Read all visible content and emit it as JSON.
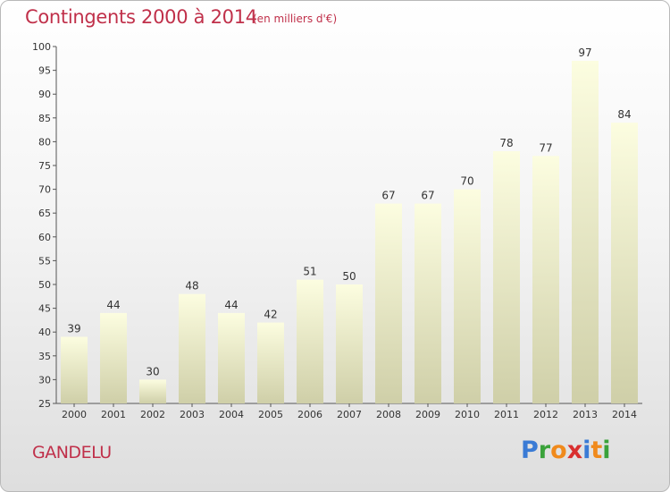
{
  "header": {
    "title": "Contingents 2000 à 2014",
    "subtitle": "(en milliers d'€)"
  },
  "footer": {
    "commune": "GANDELU",
    "logo_letters": [
      "P",
      "r",
      "o",
      "x",
      "i",
      "t",
      "i"
    ]
  },
  "colors": {
    "title": "#c0304a",
    "bar_top": "#fcfde0",
    "bar_bottom": "#cfcfa8",
    "logo": [
      "#3a7bd5",
      "#3aa23a",
      "#f08a1c",
      "#d92f2f",
      "#3a7bd5",
      "#f08a1c",
      "#3aa23a"
    ]
  },
  "chart_data": {
    "type": "bar",
    "title": "Contingents 2000 à 2014",
    "subtitle": "(en milliers d'€)",
    "categories": [
      "2000",
      "2001",
      "2002",
      "2003",
      "2004",
      "2005",
      "2006",
      "2007",
      "2008",
      "2009",
      "2010",
      "2011",
      "2012",
      "2013",
      "2014"
    ],
    "values": [
      39,
      44,
      30,
      48,
      44,
      42,
      51,
      50,
      67,
      67,
      70,
      78,
      77,
      97,
      84
    ],
    "ylim": [
      25,
      100
    ],
    "yticks": [
      25,
      30,
      35,
      40,
      45,
      50,
      55,
      60,
      65,
      70,
      75,
      80,
      85,
      90,
      95,
      100
    ],
    "grid": false,
    "data_labels": true
  }
}
